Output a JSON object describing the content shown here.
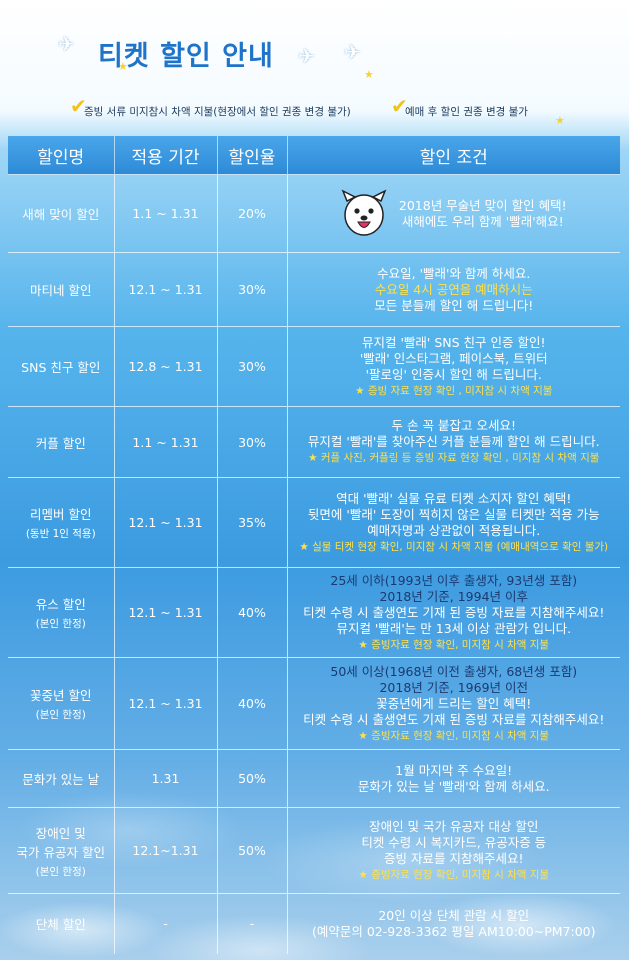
{
  "title": "티켓 할인 안내",
  "notes": [
    "증빙 서류 미지참시 차액 지불(현장에서 할인 권종 변경 불가)",
    "예매 후 할인 권종 변경 불가"
  ],
  "table": {
    "headers": [
      "할인명",
      "적용 기간",
      "할인율",
      "할인 조건"
    ],
    "rows": [
      {
        "name": "새해 맞이 할인",
        "sub": "",
        "period": "1.1 ~ 1.31",
        "rate": "20%",
        "cond": [
          "2018년 무술년 맞이 할인 혜택!",
          "새해에도 우리 함께 '빨래'해요!"
        ]
      },
      {
        "name": "마티네 할인",
        "sub": "",
        "period": "12.1 ~ 1.31",
        "rate": "30%",
        "cond": [
          "수요일, '빨래'와 함께 하세요.",
          "수요일 4시 공연을 예매하시는",
          "모든 분들께 할인 해 드립니다!"
        ]
      },
      {
        "name": "SNS 친구 할인",
        "sub": "",
        "period": "12.8 ~ 1.31",
        "rate": "30%",
        "cond": [
          "뮤지컬 '빨래' SNS 친구 인증 할인!",
          "'빨래' 인스타그램, 페이스북, 트위터",
          "'팔로잉' 인증시 할인 해 드립니다.",
          "★ 증빙 자료 현장 확인 , 미지참 시 차액 지불"
        ]
      },
      {
        "name": "커플 할인",
        "sub": "",
        "period": "1.1 ~ 1.31",
        "rate": "30%",
        "cond": [
          "두 손 꼭 붙잡고 오세요!",
          "뮤지컬 '빨래'를 찾아주신 커플 분들께 할인 해 드립니다.",
          "★ 커플 사진, 커플링 등 증빙 자료 현장 확인 , 미지참 시 차액 지불"
        ]
      },
      {
        "name": "리멤버 할인",
        "sub": "(동반 1인 적용)",
        "period": "12.1 ~ 1.31",
        "rate": "35%",
        "cond": [
          "역대 '빨래' 실물 유료 티켓 소지자 할인 혜택!",
          "뒷면에 '빨래' 도장이 찍히지 않은 실물 티켓만 적용 가능",
          "예매자명과 상관없이 적용됩니다.",
          "★ 실물 티켓 현장 확인, 미지참 시 차액 지불 (예매내역으로 확인 불가)"
        ]
      },
      {
        "name": "유스 할인",
        "sub": "(본인 한정)",
        "period": "12.1 ~ 1.31",
        "rate": "40%",
        "cond": [
          "25세 이하(1993년 이후 출생자, 93년생 포함)",
          "2018년 기준, 1994년 이후",
          "티켓 수령 시 출생연도 기재 된 증빙 자료를 지참해주세요!",
          "뮤지컬 '빨래'는 만 13세 이상 관람가 입니다.",
          "★ 증빙자료 현장 확인, 미지참 시 차액 지불"
        ]
      },
      {
        "name": "꽃중년 할인",
        "sub": "(본인 한정)",
        "period": "12.1 ~ 1.31",
        "rate": "40%",
        "cond": [
          "50세 이상(1968년 이전 출생자, 68년생 포함)",
          "2018년 기준, 1969년 이전",
          "꽃중년에게 드리는 할인 혜택!",
          "티켓 수령 시 출생연도 기재 된 증빙 자료를 지참해주세요!",
          "★ 증빙자료 현장 확인, 미지참 시 차액 지불"
        ]
      },
      {
        "name": "문화가 있는 날",
        "sub": "",
        "period": "1.31",
        "rate": "50%",
        "cond": [
          "1월 마지막 주 수요일!",
          "문화가 있는 날 '빨래'와 함께 하세요."
        ]
      },
      {
        "name": "장애인 및\n국가 유공자 할인",
        "sub": "(본인 한정)",
        "period": "12.1~1.31",
        "rate": "50%",
        "cond": [
          "장애인 및 국가 유공자 대상 할인",
          "티켓 수령 시 복지카드, 유공자증 등",
          "증빙 자료를 지참해주세요!",
          "★ 증빙자료 현장 확인, 미지참 시 차액 지불"
        ]
      },
      {
        "name": "단체 할인",
        "sub": "",
        "period": "-",
        "rate": "-",
        "cond": [
          "20인 이상 단체 관람 시 할인",
          "(예약문의 02-928-3362 평일 AM10:00~PM7:00)"
        ]
      }
    ]
  },
  "icons": {
    "check": "check-icon",
    "star": "star-icon",
    "bird": "bird-icon",
    "mascot": "dog-mascot-icon"
  },
  "colors": {
    "title": "#1f73c8",
    "highlight": "#ffe14a",
    "accent_dark": "#1c3a70",
    "check": "#f2c316"
  }
}
